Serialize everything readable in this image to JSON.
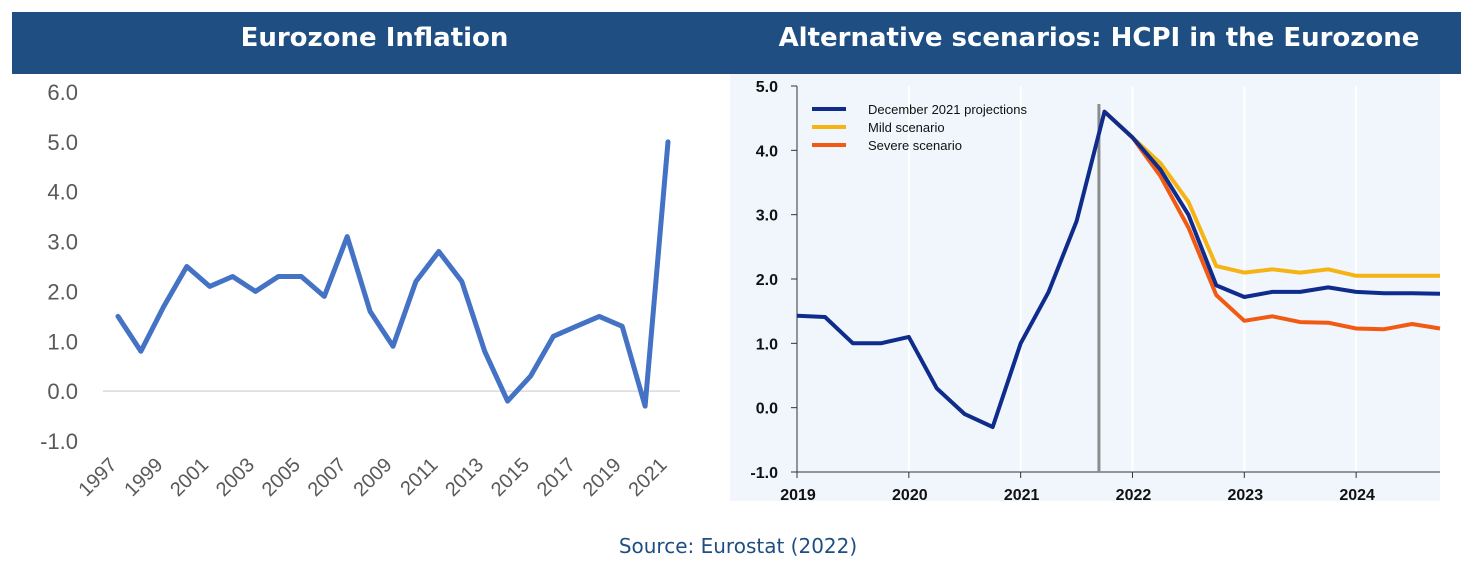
{
  "banner": {
    "left_title": "Eurozone Inflation",
    "right_title": "Alternative scenarios: HCPI in the Eurozone",
    "background": "#1f4e82"
  },
  "source": "Source: Eurostat (2022)",
  "chart_data": [
    {
      "type": "line",
      "title": "Eurozone Inflation",
      "xlabel": "",
      "ylabel": "",
      "ylim": [
        -1.0,
        6.0
      ],
      "yticks": [
        "6.0",
        "5.0",
        "4.0",
        "3.0",
        "2.0",
        "1.0",
        "0.0",
        "-1.0"
      ],
      "x": [
        1997,
        1998,
        1999,
        2000,
        2001,
        2002,
        2003,
        2004,
        2005,
        2006,
        2007,
        2008,
        2009,
        2010,
        2011,
        2012,
        2013,
        2014,
        2015,
        2016,
        2017,
        2018,
        2019,
        2020,
        2021
      ],
      "xtick_labels": [
        "1997",
        "1999",
        "2001",
        "2003",
        "2005",
        "2007",
        "2009",
        "2011",
        "2013",
        "2015",
        "2017",
        "2019",
        "2021"
      ],
      "series": [
        {
          "color": "#4472c4",
          "values": [
            1.5,
            0.8,
            1.7,
            2.5,
            2.1,
            2.3,
            2.0,
            2.3,
            2.3,
            1.9,
            3.1,
            1.6,
            0.9,
            2.2,
            2.8,
            2.2,
            0.8,
            -0.2,
            0.3,
            1.1,
            1.3,
            1.5,
            1.3,
            -0.3,
            5.0
          ]
        }
      ],
      "grid": false
    },
    {
      "type": "line",
      "title": "Alternative scenarios: HCPI in the Eurozone",
      "xlabel": "",
      "ylabel": "",
      "ylim": [
        -1.0,
        5.0
      ],
      "yticks": [
        "5.0",
        "4.0",
        "3.0",
        "2.0",
        "1.0",
        "0.0",
        "-1.0"
      ],
      "xlim": [
        2019.0,
        2024.75
      ],
      "xtick_labels": [
        "2019",
        "2020",
        "2021",
        "2022",
        "2023",
        "2024"
      ],
      "grid": true,
      "legend_position": "top-left",
      "marker_line_x": 2021.7,
      "series": [
        {
          "name": "Mild scenario",
          "color": "#f5b314",
          "x": [
            2021.75,
            2022.0,
            2022.25,
            2022.5,
            2022.75,
            2023.0,
            2023.25,
            2023.5,
            2023.75,
            2024.0,
            2024.25,
            2024.5,
            2024.75
          ],
          "values": [
            4.6,
            4.2,
            3.8,
            3.2,
            2.2,
            2.1,
            2.15,
            2.1,
            2.15,
            2.05,
            2.05,
            2.05,
            2.05
          ]
        },
        {
          "name": "Severe scenario",
          "color": "#f25a14",
          "x": [
            2021.75,
            2022.0,
            2022.25,
            2022.5,
            2022.75,
            2023.0,
            2023.25,
            2023.5,
            2023.75,
            2024.0,
            2024.25,
            2024.5,
            2024.75
          ],
          "values": [
            4.6,
            4.2,
            3.6,
            2.8,
            1.75,
            1.35,
            1.42,
            1.33,
            1.32,
            1.23,
            1.22,
            1.3,
            1.23
          ]
        },
        {
          "name": "December 2021 projections",
          "color": "#0f2c8c",
          "x": [
            2019.0,
            2019.25,
            2019.5,
            2019.75,
            2020.0,
            2020.25,
            2020.5,
            2020.75,
            2021.0,
            2021.25,
            2021.5,
            2021.75,
            2022.0,
            2022.25,
            2022.5,
            2022.75,
            2023.0,
            2023.25,
            2023.5,
            2023.75,
            2024.0,
            2024.25,
            2024.5,
            2024.75
          ],
          "values": [
            1.43,
            1.41,
            1.0,
            1.0,
            1.1,
            0.3,
            -0.1,
            -0.3,
            1.0,
            1.8,
            2.9,
            4.6,
            4.2,
            3.7,
            3.0,
            1.9,
            1.72,
            1.8,
            1.8,
            1.87,
            1.8,
            1.78,
            1.78,
            1.77
          ]
        }
      ],
      "legend_order": [
        "December 2021 projections",
        "Mild scenario",
        "Severe scenario"
      ]
    }
  ]
}
